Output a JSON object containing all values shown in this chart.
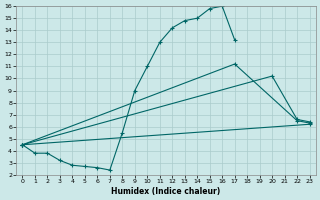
{
  "xlabel": "Humidex (Indice chaleur)",
  "background_color": "#cce8e8",
  "grid_color": "#aacccc",
  "line_color": "#006666",
  "xlim": [
    -0.5,
    23.5
  ],
  "ylim": [
    2,
    16
  ],
  "xticks": [
    0,
    1,
    2,
    3,
    4,
    5,
    6,
    7,
    8,
    9,
    10,
    11,
    12,
    13,
    14,
    15,
    16,
    17,
    18,
    19,
    20,
    21,
    22,
    23
  ],
  "yticks": [
    2,
    3,
    4,
    5,
    6,
    7,
    8,
    9,
    10,
    11,
    12,
    13,
    14,
    15,
    16
  ],
  "series1_x": [
    0,
    1,
    2,
    3,
    4,
    5,
    6,
    7,
    8,
    9,
    10,
    11,
    12,
    13,
    14,
    15,
    16,
    17
  ],
  "series1_y": [
    4.5,
    3.8,
    3.8,
    3.2,
    2.8,
    2.7,
    2.6,
    2.4,
    5.5,
    9.0,
    11.0,
    13.0,
    14.2,
    14.8,
    15.0,
    15.8,
    16.0,
    13.2
  ],
  "series2_x": [
    0,
    17,
    22,
    23
  ],
  "series2_y": [
    4.5,
    11.2,
    6.5,
    6.3
  ],
  "series3_x": [
    0,
    20,
    22,
    23
  ],
  "series3_y": [
    4.5,
    10.2,
    6.6,
    6.4
  ],
  "series4_x": [
    0,
    23
  ],
  "series4_y": [
    4.5,
    6.2
  ]
}
